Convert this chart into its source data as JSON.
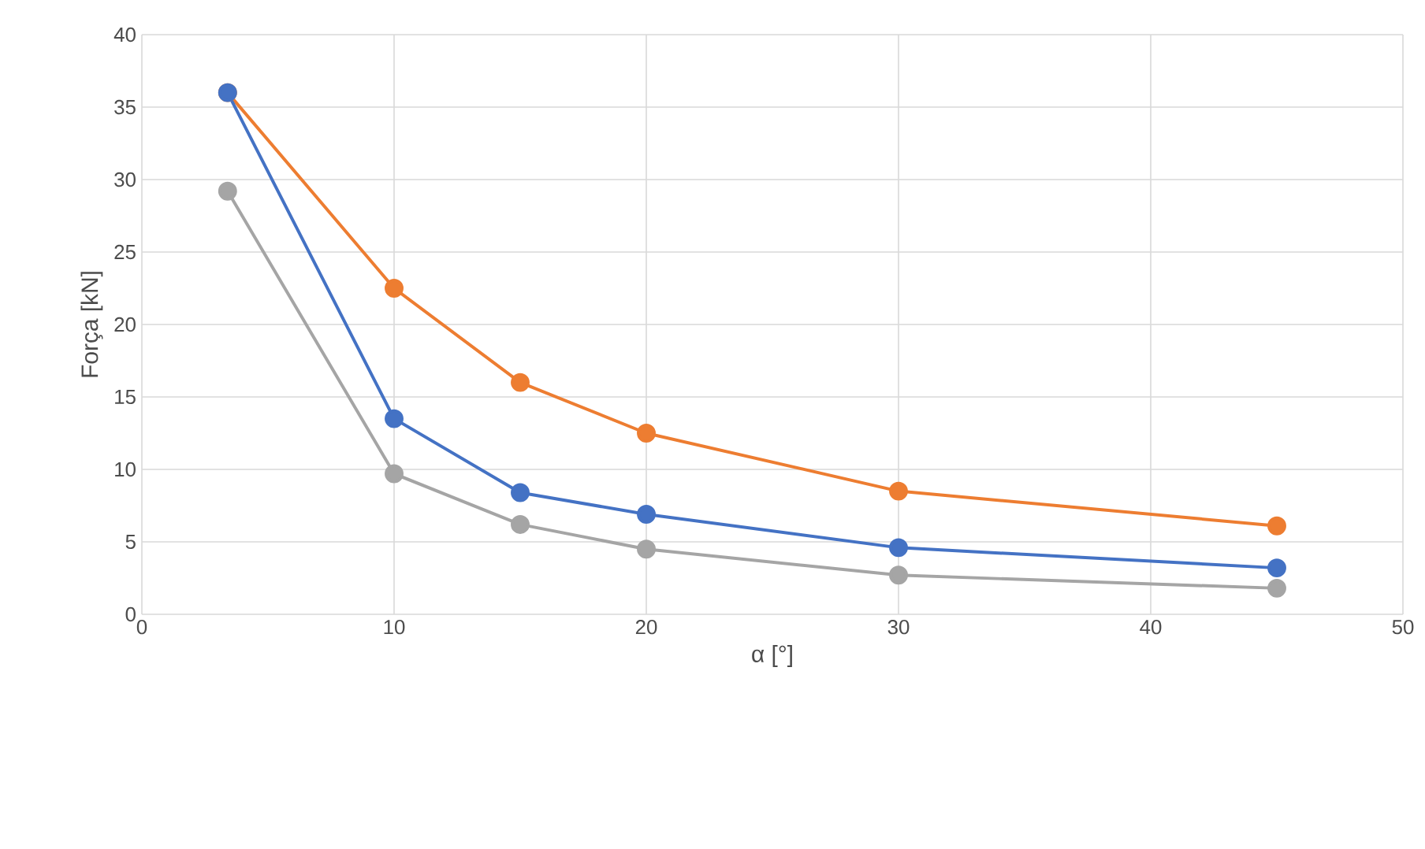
{
  "chart_data": {
    "type": "line",
    "xlabel": "α [°]",
    "ylabel": "Força [kN]",
    "x": [
      3.4,
      10,
      15,
      20,
      30,
      45
    ],
    "series": [
      {
        "color": "#ed7d31",
        "values": [
          36,
          22.5,
          16,
          12.5,
          8.5,
          6.1
        ]
      },
      {
        "color": "#4472c4",
        "values": [
          36,
          13.5,
          8.4,
          6.9,
          4.6,
          3.2
        ]
      },
      {
        "color": "#a5a5a5",
        "values": [
          29.2,
          9.7,
          6.2,
          4.5,
          2.7,
          1.8
        ]
      }
    ],
    "xlim": [
      0,
      50
    ],
    "ylim": [
      0,
      40
    ],
    "xticks": [
      0,
      10,
      20,
      30,
      40,
      50
    ],
    "yticks": [
      0,
      5,
      10,
      15,
      20,
      25,
      30,
      35,
      40
    ],
    "grid": true,
    "marker": "circle",
    "line_style": "solid"
  }
}
